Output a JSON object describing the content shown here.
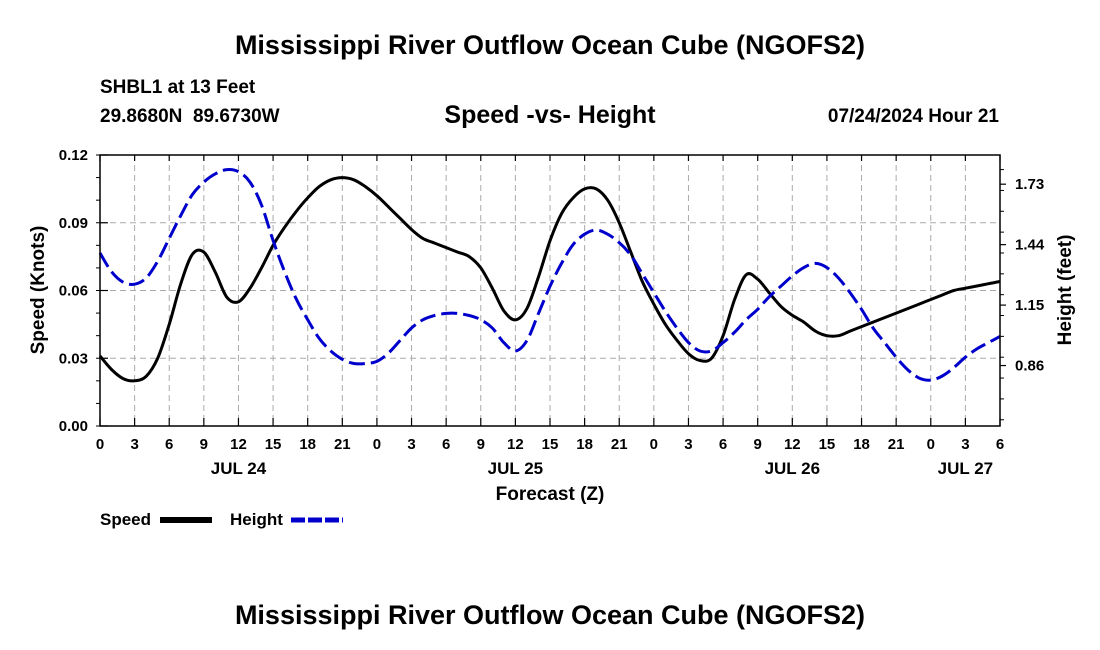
{
  "page": {
    "title": "Mississippi River Outflow Ocean Cube (NGOFS2)",
    "station": "SHBL1 at 13 Feet",
    "coords": "29.8680N  89.6730W",
    "datetime": "07/24/2024 Hour 21",
    "footer_title": "Mississippi River Outflow Ocean Cube (NGOFS2)"
  },
  "chart_data": {
    "type": "line",
    "title": "Speed -vs- Height",
    "xlabel": "Forecast (Z)",
    "ylabel": "Speed (Knots)",
    "y2label": "Height (feet)",
    "xlim": [
      0,
      78
    ],
    "ylim": [
      0,
      0.12
    ],
    "y2lim": [
      0.57,
      1.87
    ],
    "grid": true,
    "legend_position": "bottom-left",
    "x_ticks": [
      0,
      3,
      6,
      9,
      12,
      15,
      18,
      21,
      24,
      27,
      30,
      33,
      36,
      39,
      42,
      45,
      48,
      51,
      54,
      57,
      60,
      63,
      66,
      69,
      72,
      75,
      78
    ],
    "x_tick_labels": [
      "0",
      "3",
      "6",
      "9",
      "12",
      "15",
      "18",
      "21",
      "0",
      "3",
      "6",
      "9",
      "12",
      "15",
      "18",
      "21",
      "0",
      "3",
      "6",
      "9",
      "12",
      "15",
      "18",
      "21",
      "0",
      "3",
      "6"
    ],
    "y_ticks": [
      0,
      0.03,
      0.06,
      0.09,
      0.12
    ],
    "y_tick_labels": [
      "0.00",
      "0.03",
      "0.06",
      "0.09",
      "0.12"
    ],
    "y2_ticks": [
      0.86,
      1.15,
      1.44,
      1.73
    ],
    "y2_tick_labels": [
      "0.86",
      "1.15",
      "1.44",
      "1.73"
    ],
    "date_labels": [
      {
        "x": 12,
        "label": "JUL 24"
      },
      {
        "x": 36,
        "label": "JUL 25"
      },
      {
        "x": 60,
        "label": "JUL 26"
      },
      {
        "x": 75,
        "label": "JUL 27"
      }
    ],
    "series": [
      {
        "name": "Speed",
        "axis": "left",
        "color": "#000000",
        "dash": "solid",
        "x": [
          0,
          1,
          2,
          3,
          4,
          5,
          6,
          7,
          8,
          9,
          10,
          11,
          12,
          13,
          14,
          15,
          16,
          17,
          18,
          19,
          20,
          21,
          22,
          23,
          24,
          25,
          26,
          27,
          28,
          29,
          30,
          31,
          32,
          33,
          34,
          35,
          36,
          37,
          38,
          39,
          40,
          41,
          42,
          43,
          44,
          45,
          46,
          47,
          48,
          49,
          50,
          51,
          52,
          53,
          54,
          55,
          56,
          57,
          58,
          59,
          60,
          61,
          62,
          63,
          64,
          65,
          66,
          67,
          68,
          69,
          70,
          71,
          72,
          73,
          74,
          75,
          76,
          77,
          78
        ],
        "values": [
          0.031,
          0.025,
          0.021,
          0.02,
          0.022,
          0.03,
          0.045,
          0.063,
          0.076,
          0.077,
          0.068,
          0.057,
          0.055,
          0.061,
          0.07,
          0.08,
          0.088,
          0.095,
          0.101,
          0.106,
          0.109,
          0.11,
          0.109,
          0.106,
          0.102,
          0.097,
          0.092,
          0.087,
          0.083,
          0.081,
          0.079,
          0.077,
          0.075,
          0.07,
          0.061,
          0.051,
          0.047,
          0.052,
          0.066,
          0.082,
          0.094,
          0.101,
          0.105,
          0.105,
          0.1,
          0.09,
          0.077,
          0.064,
          0.054,
          0.045,
          0.038,
          0.032,
          0.029,
          0.03,
          0.04,
          0.056,
          0.067,
          0.065,
          0.059,
          0.053,
          0.049,
          0.046,
          0.042,
          0.04,
          0.04,
          0.042,
          0.044,
          0.046,
          0.048,
          0.05,
          0.052,
          0.054,
          0.056,
          0.058,
          0.06,
          0.061,
          0.062,
          0.063,
          0.064
        ]
      },
      {
        "name": "Height",
        "axis": "right",
        "color": "#0000cc",
        "dash": "dashed",
        "x": [
          0,
          1,
          2,
          3,
          4,
          5,
          6,
          7,
          8,
          9,
          10,
          11,
          12,
          13,
          14,
          15,
          16,
          17,
          18,
          19,
          20,
          21,
          22,
          23,
          24,
          25,
          26,
          27,
          28,
          29,
          30,
          31,
          32,
          33,
          34,
          35,
          36,
          37,
          38,
          39,
          40,
          41,
          42,
          43,
          44,
          45,
          46,
          47,
          48,
          49,
          50,
          51,
          52,
          53,
          54,
          55,
          56,
          57,
          58,
          59,
          60,
          61,
          62,
          63,
          64,
          65,
          66,
          67,
          68,
          69,
          70,
          71,
          72,
          73,
          74,
          75,
          76,
          77,
          78
        ],
        "values": [
          1.4,
          1.31,
          1.26,
          1.25,
          1.28,
          1.36,
          1.47,
          1.58,
          1.68,
          1.74,
          1.78,
          1.8,
          1.79,
          1.74,
          1.63,
          1.46,
          1.31,
          1.18,
          1.08,
          0.99,
          0.93,
          0.89,
          0.87,
          0.87,
          0.88,
          0.92,
          0.98,
          1.04,
          1.08,
          1.1,
          1.11,
          1.11,
          1.1,
          1.08,
          1.04,
          0.97,
          0.93,
          0.98,
          1.11,
          1.24,
          1.35,
          1.44,
          1.49,
          1.51,
          1.49,
          1.45,
          1.39,
          1.3,
          1.21,
          1.12,
          1.04,
          0.97,
          0.93,
          0.93,
          0.97,
          1.02,
          1.08,
          1.13,
          1.19,
          1.24,
          1.29,
          1.33,
          1.35,
          1.33,
          1.28,
          1.21,
          1.13,
          1.04,
          0.97,
          0.9,
          0.84,
          0.8,
          0.79,
          0.81,
          0.85,
          0.9,
          0.94,
          0.97,
          1.0
        ]
      }
    ]
  }
}
